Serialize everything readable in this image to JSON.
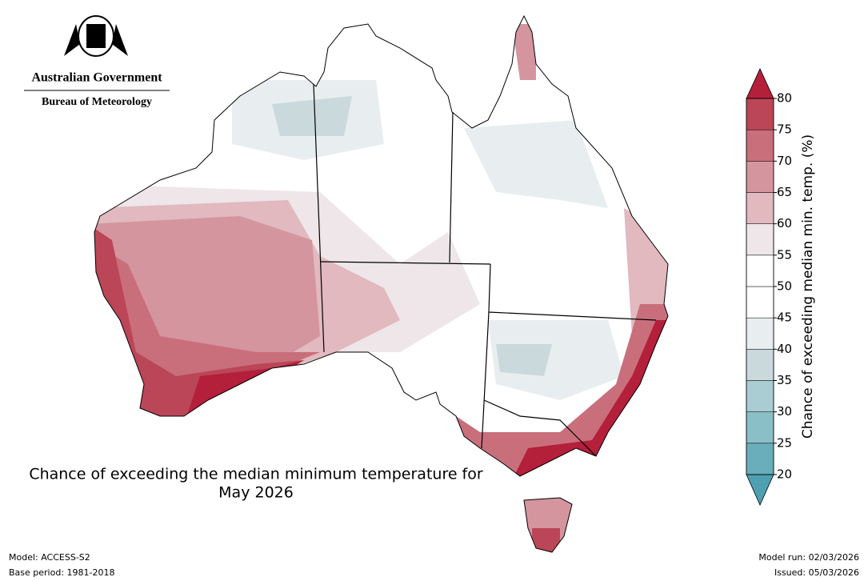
{
  "header": {
    "government": "Australian Government",
    "agency": "Bureau of Meteorology"
  },
  "title": [
    "Chance of exceeding the median minimum temperature for",
    "May 2026"
  ],
  "colorbar": {
    "label": "Chance of exceeding median min. temp. (%)",
    "ticks": [
      20,
      25,
      30,
      35,
      40,
      45,
      50,
      55,
      60,
      65,
      70,
      75,
      80
    ],
    "colors": [
      "#6aaebc",
      "#8bbfc8",
      "#a9cdd3",
      "#cad9dc",
      "#e8eef0",
      "#ffffff",
      "#ffffff",
      "#eee6e8",
      "#e1b9bf",
      "#d4959e",
      "#c96f7c",
      "#bb4657"
    ],
    "under_color": "#4f9fb2",
    "over_color": "#b41f3a"
  },
  "footer": {
    "model": "Model: ACCESS-S2",
    "base_period": "Base period: 1981-2018",
    "model_run": "Model run: 02/03/2026",
    "issued": "Issued: 05/03/2026"
  }
}
